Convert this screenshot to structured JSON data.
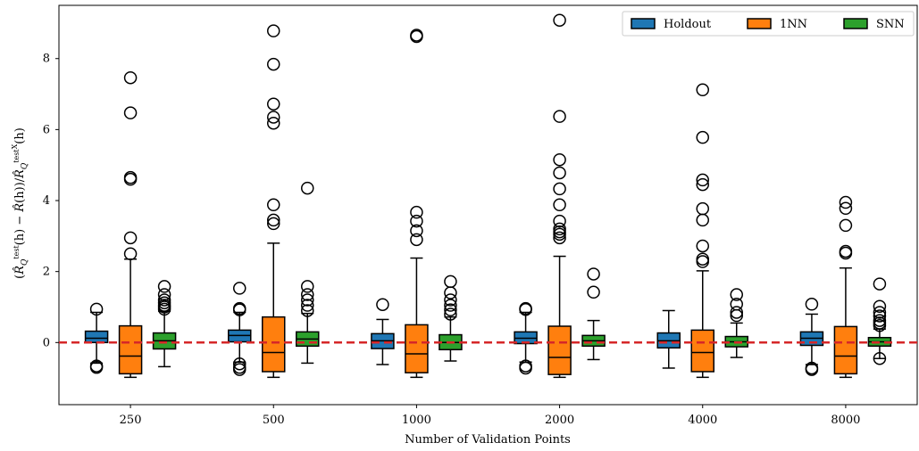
{
  "chart_data": {
    "type": "box",
    "title": "",
    "xlabel": "Number of Validation Points",
    "ylabel": "(R̂_Q^test(h) − R̂(h)) / R̂_Q^test,X(h)",
    "ylim": [
      -1.75,
      9.5
    ],
    "yticks": [
      0,
      2,
      4,
      6,
      8
    ],
    "categories": [
      "250",
      "500",
      "1000",
      "2000",
      "4000",
      "8000"
    ],
    "reference_line": {
      "y": 0,
      "color": "#d62728",
      "style": "dashed"
    },
    "legend": {
      "position": "top-right"
    },
    "series": [
      {
        "name": "Holdout",
        "color": "#1f77b4",
        "boxes": [
          {
            "q1": 0.0,
            "median": 0.12,
            "q3": 0.32,
            "whisker_low": -0.58,
            "whisker_high": 0.85,
            "outliers": [
              0.94,
              -0.66,
              -0.7
            ]
          },
          {
            "q1": 0.02,
            "median": 0.2,
            "q3": 0.35,
            "whisker_low": -0.55,
            "whisker_high": 0.85,
            "outliers": [
              0.92,
              0.96,
              1.53,
              -0.6,
              -0.7,
              -0.76
            ]
          },
          {
            "q1": -0.17,
            "median": 0.05,
            "q3": 0.25,
            "whisker_low": -0.62,
            "whisker_high": 0.65,
            "outliers": [
              1.07
            ]
          },
          {
            "q1": -0.03,
            "median": 0.12,
            "q3": 0.3,
            "whisker_low": -0.55,
            "whisker_high": 0.85,
            "outliers": [
              0.93,
              0.96,
              -0.66,
              -0.72
            ]
          },
          {
            "q1": -0.15,
            "median": 0.05,
            "q3": 0.27,
            "whisker_low": -0.72,
            "whisker_high": 0.9,
            "outliers": []
          },
          {
            "q1": -0.08,
            "median": 0.12,
            "q3": 0.3,
            "whisker_low": -0.62,
            "whisker_high": 0.8,
            "outliers": [
              1.08,
              -0.72,
              -0.76
            ]
          }
        ]
      },
      {
        "name": "1NN",
        "color": "#ff7f0e",
        "boxes": [
          {
            "q1": -0.88,
            "median": -0.38,
            "q3": 0.47,
            "whisker_low": -0.98,
            "whisker_high": 2.35,
            "outliers": [
              2.5,
              2.95,
              4.6,
              4.65,
              6.47,
              7.46
            ]
          },
          {
            "q1": -0.82,
            "median": -0.28,
            "q3": 0.72,
            "whisker_low": -0.98,
            "whisker_high": 2.8,
            "outliers": [
              3.35,
              3.45,
              3.88,
              6.18,
              6.35,
              6.72,
              7.84,
              8.78
            ]
          },
          {
            "q1": -0.85,
            "median": -0.32,
            "q3": 0.5,
            "whisker_low": -0.98,
            "whisker_high": 2.38,
            "outliers": [
              2.9,
              3.15,
              3.42,
              3.67,
              8.62,
              8.66
            ]
          },
          {
            "q1": -0.9,
            "median": -0.42,
            "q3": 0.46,
            "whisker_low": -0.98,
            "whisker_high": 2.43,
            "outliers": [
              2.95,
              3.05,
              3.12,
              3.2,
              3.42,
              3.88,
              4.33,
              4.78,
              5.15,
              6.37,
              9.08
            ]
          },
          {
            "q1": -0.82,
            "median": -0.28,
            "q3": 0.35,
            "whisker_low": -0.98,
            "whisker_high": 2.02,
            "outliers": [
              2.28,
              2.35,
              2.72,
              3.45,
              3.77,
              4.45,
              4.58,
              5.78,
              7.12
            ]
          },
          {
            "q1": -0.88,
            "median": -0.38,
            "q3": 0.45,
            "whisker_low": -0.98,
            "whisker_high": 2.1,
            "outliers": [
              2.52,
              2.57,
              3.3,
              3.78,
              3.95
            ]
          }
        ]
      },
      {
        "name": "SNN",
        "color": "#2ca02c",
        "boxes": [
          {
            "q1": -0.18,
            "median": 0.05,
            "q3": 0.27,
            "whisker_low": -0.68,
            "whisker_high": 0.88,
            "outliers": [
              0.94,
              1.0,
              1.05,
              1.12,
              1.2,
              1.35,
              1.58
            ]
          },
          {
            "q1": -0.1,
            "median": 0.1,
            "q3": 0.3,
            "whisker_low": -0.58,
            "whisker_high": 0.82,
            "outliers": [
              0.9,
              1.05,
              1.2,
              1.35,
              1.58,
              4.35
            ]
          },
          {
            "q1": -0.2,
            "median": 0.0,
            "q3": 0.22,
            "whisker_low": -0.52,
            "whisker_high": 0.72,
            "outliers": [
              0.8,
              0.92,
              1.05,
              1.2,
              1.4,
              1.72
            ]
          },
          {
            "q1": -0.1,
            "median": 0.05,
            "q3": 0.2,
            "whisker_low": -0.48,
            "whisker_high": 0.62,
            "outliers": [
              1.42,
              1.93
            ]
          },
          {
            "q1": -0.12,
            "median": 0.02,
            "q3": 0.17,
            "whisker_low": -0.42,
            "whisker_high": 0.55,
            "outliers": [
              0.76,
              0.85,
              1.08,
              1.35
            ]
          },
          {
            "q1": -0.1,
            "median": 0.02,
            "q3": 0.14,
            "whisker_low": -0.45,
            "whisker_high": 0.38,
            "outliers": [
              0.48,
              0.55,
              0.62,
              0.75,
              0.85,
              1.02,
              1.65,
              -0.45
            ]
          }
        ]
      }
    ]
  }
}
